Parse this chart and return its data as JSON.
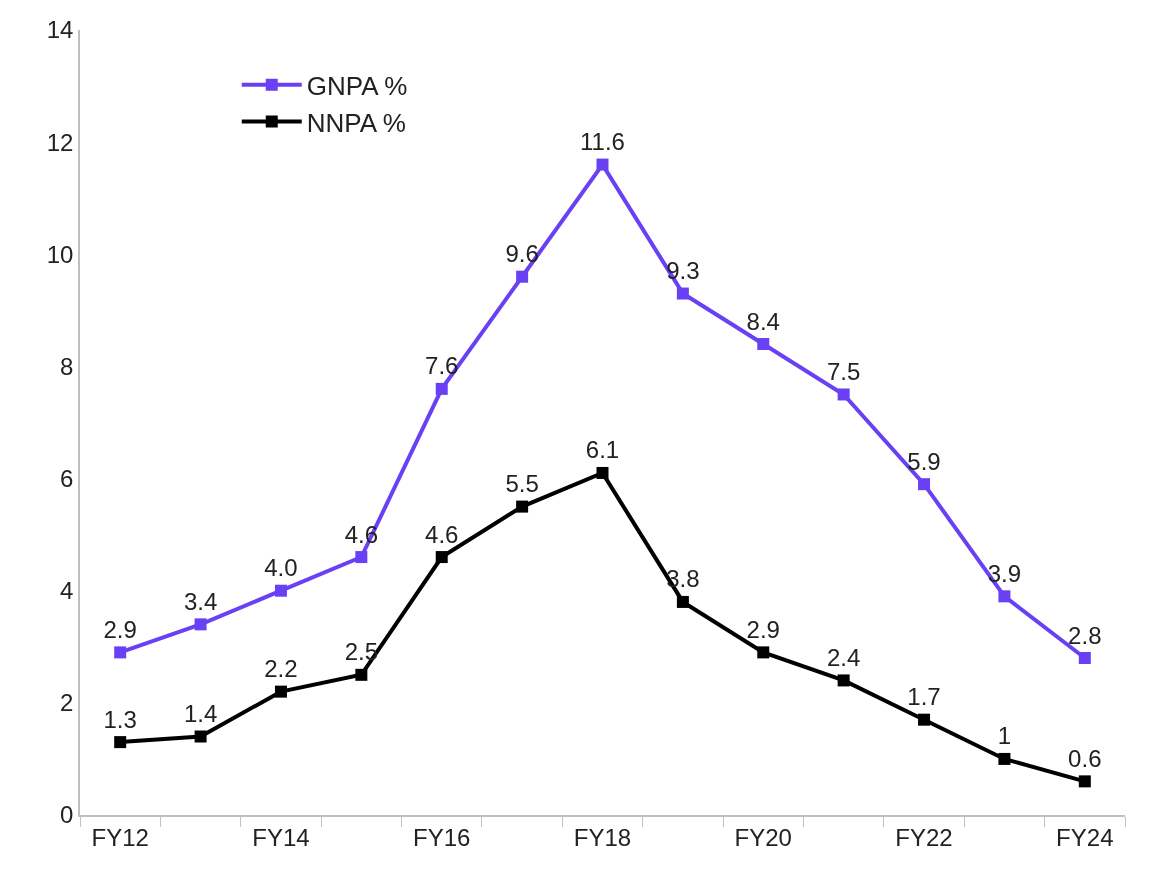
{
  "chart_data": {
    "type": "line",
    "categories": [
      "FY12",
      null,
      "FY14",
      null,
      "FY16",
      null,
      "FY18",
      null,
      "FY20",
      null,
      "FY22",
      null,
      "FY24"
    ],
    "series": [
      {
        "name": "GNPA %",
        "color": "#6a40f5",
        "values": [
          2.9,
          3.4,
          4.0,
          4.6,
          7.6,
          9.6,
          11.6,
          9.3,
          8.4,
          7.5,
          5.9,
          3.9,
          2.8
        ],
        "value_labels": [
          "2.9",
          "3.4",
          "4.0",
          "4.6",
          "7.6",
          "9.6",
          "11.6",
          "9.3",
          "8.4",
          "7.5",
          "5.9",
          "3.9",
          "2.8"
        ]
      },
      {
        "name": "NNPA %",
        "color": "#000000",
        "values": [
          1.3,
          1.4,
          2.2,
          2.5,
          4.6,
          5.5,
          6.1,
          3.8,
          2.9,
          2.4,
          1.7,
          1,
          0.6
        ],
        "value_labels": [
          "1.3",
          "1.4",
          "2.2",
          "2.5",
          "4.6",
          "5.5",
          "6.1",
          "3.8",
          "2.9",
          "2.4",
          "1.7",
          "1",
          "0.6"
        ]
      }
    ],
    "ylim": [
      0,
      14
    ],
    "yticks": [
      0,
      2,
      4,
      6,
      8,
      10,
      12,
      14
    ],
    "legend": "top left",
    "marker": "square",
    "line_style": "solid"
  }
}
